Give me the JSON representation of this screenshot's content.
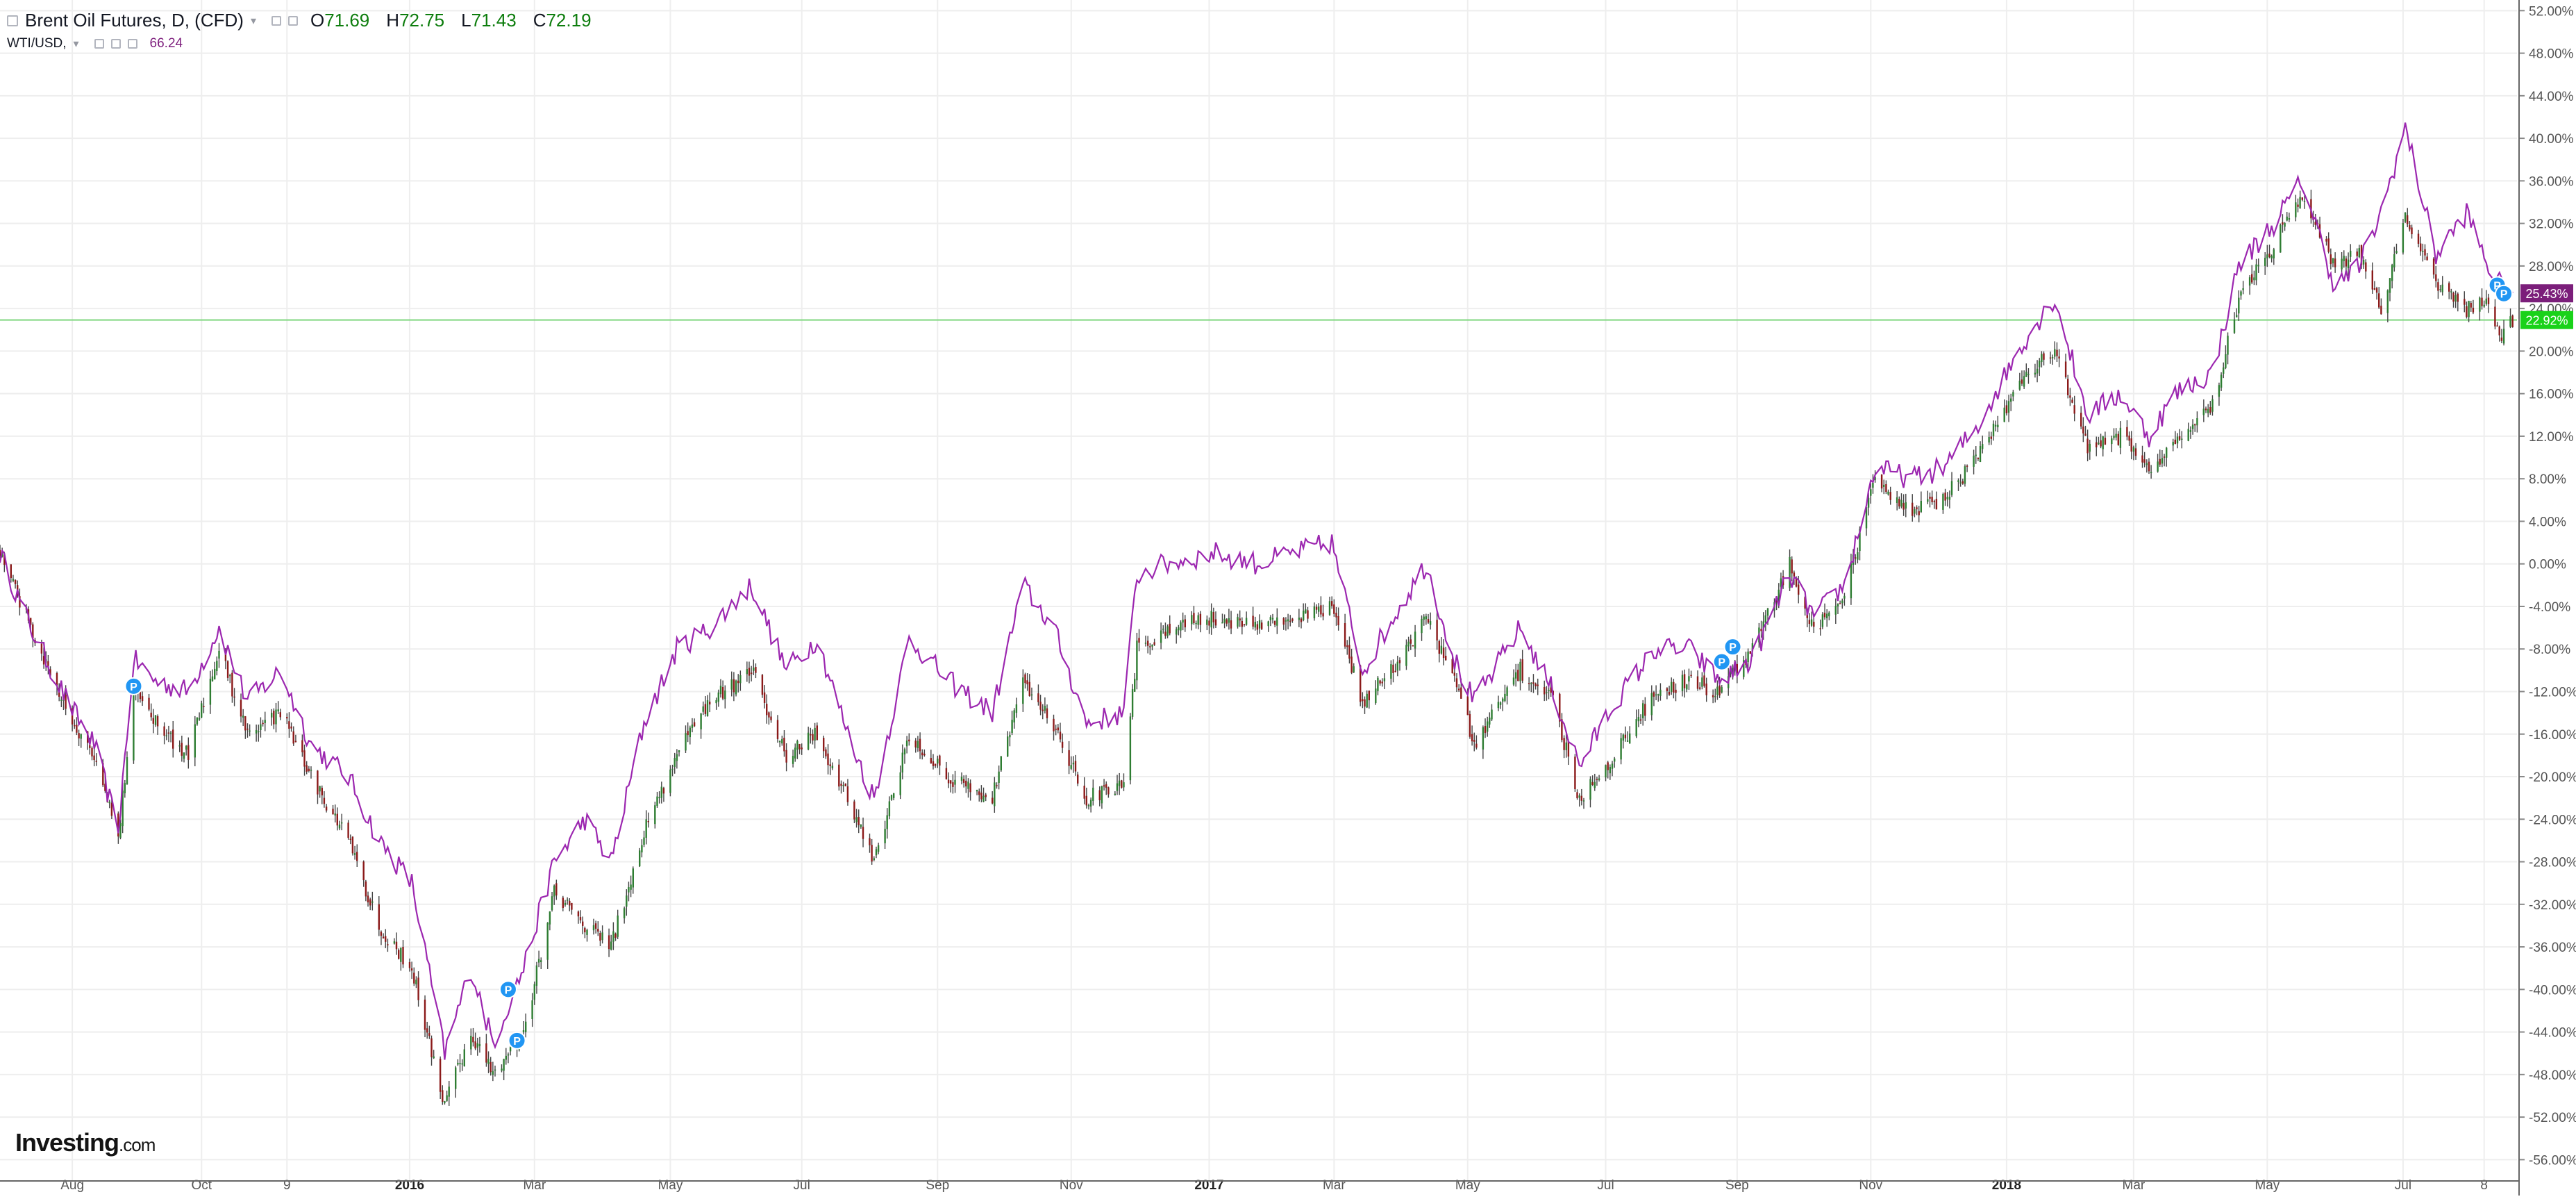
{
  "legend": {
    "symbol_title": "Brent Oil Futures, D, (CFD)",
    "ohlc": [
      {
        "label": "O",
        "value": "71.69"
      },
      {
        "label": "H",
        "value": "72.75"
      },
      {
        "label": "L",
        "value": "71.43"
      },
      {
        "label": "C",
        "value": "72.19"
      }
    ],
    "compare_symbol": "WTI/USD,",
    "compare_value": "66.24"
  },
  "logo": {
    "text": "Investing",
    "suffix": ".com"
  },
  "colors": {
    "up": "#2e7d32",
    "down": "#8b1a1a",
    "wick": "#444444",
    "compare_line": "#9c27b0",
    "compare_badge": "#7b1e7a",
    "current_badge": "#19d219",
    "current_line": "#7fd77f",
    "grid": "#eeeeee",
    "axis_text": "#555555",
    "marker": "#2196f3"
  },
  "chart_data": {
    "type": "line",
    "title": "Brent Oil Futures, D, (CFD)",
    "y_unit": "% change",
    "ylim": [
      -58,
      53
    ],
    "y_ticks": [
      "52.00%",
      "48.00%",
      "44.00%",
      "40.00%",
      "36.00%",
      "32.00%",
      "28.00%",
      "24.00%",
      "20.00%",
      "16.00%",
      "12.00%",
      "8.00%",
      "4.00%",
      "0.00%",
      "-4.00%",
      "-8.00%",
      "-12.00%",
      "-16.00%",
      "-20.00%",
      "-24.00%",
      "-28.00%",
      "-32.00%",
      "-36.00%",
      "-40.00%",
      "-44.00%",
      "-48.00%",
      "-52.00%",
      "-56.00%"
    ],
    "x_ticks": [
      {
        "label": "Aug",
        "date": "2015-08-03",
        "bold": false
      },
      {
        "label": "Oct",
        "date": "2015-10-01",
        "bold": false
      },
      {
        "label": "9",
        "date": "2015-11-09",
        "bold": false
      },
      {
        "label": "2016",
        "date": "2016-01-04",
        "bold": true
      },
      {
        "label": "Mar",
        "date": "2016-03-01",
        "bold": false
      },
      {
        "label": "May",
        "date": "2016-05-02",
        "bold": false
      },
      {
        "label": "Jul",
        "date": "2016-07-01",
        "bold": false
      },
      {
        "label": "Sep",
        "date": "2016-09-01",
        "bold": false
      },
      {
        "label": "Nov",
        "date": "2016-11-01",
        "bold": false
      },
      {
        "label": "2017",
        "date": "2017-01-03",
        "bold": true
      },
      {
        "label": "Mar",
        "date": "2017-03-01",
        "bold": false
      },
      {
        "label": "May",
        "date": "2017-05-01",
        "bold": false
      },
      {
        "label": "Jul",
        "date": "2017-07-03",
        "bold": false
      },
      {
        "label": "Sep",
        "date": "2017-09-01",
        "bold": false
      },
      {
        "label": "Nov",
        "date": "2017-11-01",
        "bold": false
      },
      {
        "label": "2018",
        "date": "2018-01-02",
        "bold": true
      },
      {
        "label": "Mar",
        "date": "2018-03-01",
        "bold": false
      },
      {
        "label": "May",
        "date": "2018-05-01",
        "bold": false
      },
      {
        "label": "Jul",
        "date": "2018-07-02",
        "bold": false
      },
      {
        "label": "8",
        "date": "2018-08-08",
        "bold": false
      }
    ],
    "x_range": [
      "2015-07-01",
      "2018-08-23"
    ],
    "grid": true,
    "series": [
      {
        "name": "Brent Oil Futures",
        "style": "candlestick",
        "points": [
          [
            "2015-07-01",
            1
          ],
          [
            "2015-07-15",
            -6
          ],
          [
            "2015-08-01",
            -14
          ],
          [
            "2015-08-13",
            -18
          ],
          [
            "2015-08-24",
            -26
          ],
          [
            "2015-08-31",
            -12
          ],
          [
            "2015-09-10",
            -15
          ],
          [
            "2015-09-25",
            -18
          ],
          [
            "2015-10-09",
            -8
          ],
          [
            "2015-10-22",
            -16
          ],
          [
            "2015-11-06",
            -14
          ],
          [
            "2015-11-20",
            -20
          ],
          [
            "2015-12-07",
            -26
          ],
          [
            "2015-12-21",
            -34
          ],
          [
            "2016-01-05",
            -38
          ],
          [
            "2016-01-20",
            -51
          ],
          [
            "2016-02-01",
            -44
          ],
          [
            "2016-02-11",
            -48
          ],
          [
            "2016-02-25",
            -44
          ],
          [
            "2016-03-10",
            -31
          ],
          [
            "2016-03-24",
            -34
          ],
          [
            "2016-04-05",
            -36
          ],
          [
            "2016-04-20",
            -25
          ],
          [
            "2016-05-05",
            -18
          ],
          [
            "2016-05-20",
            -13
          ],
          [
            "2016-06-08",
            -10
          ],
          [
            "2016-06-24",
            -18
          ],
          [
            "2016-07-08",
            -16
          ],
          [
            "2016-07-22",
            -22
          ],
          [
            "2016-08-03",
            -28
          ],
          [
            "2016-08-19",
            -16
          ],
          [
            "2016-09-06",
            -20
          ],
          [
            "2016-09-26",
            -22
          ],
          [
            "2016-10-10",
            -11
          ],
          [
            "2016-10-24",
            -15
          ],
          [
            "2016-11-08",
            -22
          ],
          [
            "2016-11-25",
            -21
          ],
          [
            "2016-12-01",
            -8
          ],
          [
            "2016-12-15",
            -6
          ],
          [
            "2017-01-06",
            -5
          ],
          [
            "2017-01-25",
            -6
          ],
          [
            "2017-02-10",
            -5
          ],
          [
            "2017-02-28",
            -4
          ],
          [
            "2017-03-14",
            -13
          ],
          [
            "2017-03-31",
            -9
          ],
          [
            "2017-04-12",
            -5
          ],
          [
            "2017-04-25",
            -11
          ],
          [
            "2017-05-04",
            -17
          ],
          [
            "2017-05-25",
            -10
          ],
          [
            "2017-06-09",
            -13
          ],
          [
            "2017-06-21",
            -22
          ],
          [
            "2017-07-07",
            -18
          ],
          [
            "2017-07-26",
            -12
          ],
          [
            "2017-08-10",
            -11
          ],
          [
            "2017-08-24",
            -12
          ],
          [
            "2017-09-08",
            -8
          ],
          [
            "2017-09-25",
            0
          ],
          [
            "2017-10-06",
            -6
          ],
          [
            "2017-10-20",
            -3
          ],
          [
            "2017-11-03",
            8
          ],
          [
            "2017-11-20",
            5
          ],
          [
            "2017-12-04",
            6
          ],
          [
            "2017-12-20",
            10
          ],
          [
            "2018-01-10",
            18
          ],
          [
            "2018-01-24",
            20
          ],
          [
            "2018-02-08",
            11
          ],
          [
            "2018-02-23",
            12
          ],
          [
            "2018-03-08",
            9
          ],
          [
            "2018-03-20",
            11
          ],
          [
            "2018-04-06",
            15
          ],
          [
            "2018-04-18",
            25
          ],
          [
            "2018-05-04",
            30
          ],
          [
            "2018-05-17",
            35
          ],
          [
            "2018-06-01",
            28
          ],
          [
            "2018-06-12",
            29
          ],
          [
            "2018-06-22",
            24
          ],
          [
            "2018-07-03",
            33
          ],
          [
            "2018-07-17",
            26
          ],
          [
            "2018-07-31",
            24
          ],
          [
            "2018-08-10",
            25
          ],
          [
            "2018-08-16",
            21
          ],
          [
            "2018-08-21",
            22.92
          ]
        ]
      },
      {
        "name": "WTI/USD",
        "style": "line",
        "points": [
          [
            "2015-07-01",
            1
          ],
          [
            "2015-07-15",
            -6
          ],
          [
            "2015-08-01",
            -13
          ],
          [
            "2015-08-13",
            -17
          ],
          [
            "2015-08-24",
            -25
          ],
          [
            "2015-08-31",
            -9
          ],
          [
            "2015-09-10",
            -11
          ],
          [
            "2015-09-25",
            -12
          ],
          [
            "2015-10-09",
            -6
          ],
          [
            "2015-10-22",
            -13
          ],
          [
            "2015-11-06",
            -10
          ],
          [
            "2015-11-20",
            -17
          ],
          [
            "2015-12-07",
            -20
          ],
          [
            "2015-12-21",
            -26
          ],
          [
            "2016-01-05",
            -30
          ],
          [
            "2016-01-20",
            -46
          ],
          [
            "2016-02-01",
            -38
          ],
          [
            "2016-02-11",
            -45
          ],
          [
            "2016-02-25",
            -38
          ],
          [
            "2016-03-10",
            -28
          ],
          [
            "2016-03-24",
            -24
          ],
          [
            "2016-04-05",
            -28
          ],
          [
            "2016-04-20",
            -15
          ],
          [
            "2016-05-05",
            -8
          ],
          [
            "2016-05-20",
            -6
          ],
          [
            "2016-06-08",
            -2
          ],
          [
            "2016-06-24",
            -10
          ],
          [
            "2016-07-08",
            -7
          ],
          [
            "2016-07-22",
            -16
          ],
          [
            "2016-08-03",
            -22
          ],
          [
            "2016-08-19",
            -7
          ],
          [
            "2016-09-06",
            -11
          ],
          [
            "2016-09-26",
            -14
          ],
          [
            "2016-10-10",
            -2
          ],
          [
            "2016-10-24",
            -6
          ],
          [
            "2016-11-08",
            -15
          ],
          [
            "2016-11-25",
            -14
          ],
          [
            "2016-12-01",
            -1
          ],
          [
            "2016-12-15",
            0
          ],
          [
            "2017-01-06",
            1
          ],
          [
            "2017-01-25",
            0
          ],
          [
            "2017-02-10",
            1
          ],
          [
            "2017-02-28",
            2
          ],
          [
            "2017-03-14",
            -10
          ],
          [
            "2017-03-31",
            -4
          ],
          [
            "2017-04-12",
            0
          ],
          [
            "2017-04-25",
            -9
          ],
          [
            "2017-05-04",
            -13
          ],
          [
            "2017-05-25",
            -6
          ],
          [
            "2017-06-09",
            -12
          ],
          [
            "2017-06-21",
            -19
          ],
          [
            "2017-07-07",
            -13
          ],
          [
            "2017-07-26",
            -8
          ],
          [
            "2017-08-10",
            -8
          ],
          [
            "2017-08-24",
            -11
          ],
          [
            "2017-09-08",
            -9
          ],
          [
            "2017-09-25",
            -1
          ],
          [
            "2017-10-06",
            -5
          ],
          [
            "2017-10-20",
            -2
          ],
          [
            "2017-11-03",
            9
          ],
          [
            "2017-11-20",
            8
          ],
          [
            "2017-12-04",
            9
          ],
          [
            "2017-12-20",
            13
          ],
          [
            "2018-01-10",
            21
          ],
          [
            "2018-01-24",
            25
          ],
          [
            "2018-02-08",
            14
          ],
          [
            "2018-02-23",
            16
          ],
          [
            "2018-03-08",
            12
          ],
          [
            "2018-03-20",
            16
          ],
          [
            "2018-04-06",
            18
          ],
          [
            "2018-04-18",
            28
          ],
          [
            "2018-05-04",
            32
          ],
          [
            "2018-05-17",
            36
          ],
          [
            "2018-06-01",
            26
          ],
          [
            "2018-06-12",
            28
          ],
          [
            "2018-06-22",
            33
          ],
          [
            "2018-07-03",
            41
          ],
          [
            "2018-07-17",
            29
          ],
          [
            "2018-07-31",
            33
          ],
          [
            "2018-08-10",
            28
          ],
          [
            "2018-08-16",
            26
          ],
          [
            "2018-08-21",
            25.43
          ]
        ]
      }
    ],
    "last_values": [
      {
        "series": "WTI/USD",
        "label": "25.43%",
        "value": 25.43
      },
      {
        "series": "Brent Oil Futures",
        "label": "22.92%",
        "value": 22.92
      }
    ],
    "markers": [
      {
        "label": "P",
        "date": "2015-08-31",
        "value": -11.5
      },
      {
        "label": "P",
        "date": "2016-02-18",
        "value": -40
      },
      {
        "label": "P",
        "date": "2016-02-22",
        "value": -44.8
      },
      {
        "label": "P",
        "date": "2017-08-30",
        "value": -7.8
      },
      {
        "label": "P",
        "date": "2017-08-25",
        "value": -9.2
      },
      {
        "label": "P",
        "date": "2018-08-14",
        "value": 26.2
      },
      {
        "label": "P",
        "date": "2018-08-17",
        "value": 25.4
      }
    ]
  }
}
